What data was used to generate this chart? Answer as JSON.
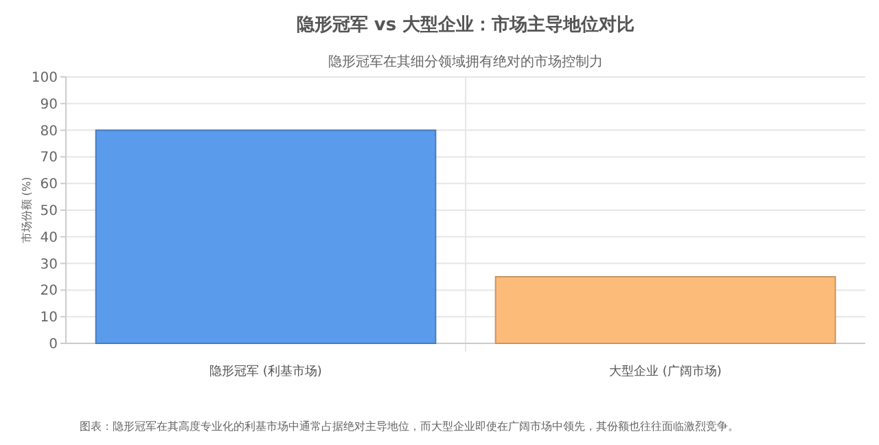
{
  "chart_data": {
    "type": "bar",
    "title": "隐形冠军 vs 大型企业：市场主导地位对比",
    "subtitle": "隐形冠军在其细分领域拥有绝对的市场控制力",
    "ylabel": "市场份额 (%)",
    "categories": [
      "隐形冠军 (利基市场)",
      "大型企业 (广阔市场)"
    ],
    "values": [
      80,
      25
    ],
    "colors": [
      "#5b9bec",
      "#fdbb7a"
    ],
    "ylim": [
      0,
      100
    ],
    "yticks": [
      0,
      10,
      20,
      30,
      40,
      50,
      60,
      70,
      80,
      90,
      100
    ],
    "grid": true,
    "annotations": [
      "图表：隐形冠军在其高度专业化的利基市场中通常占据绝对主导地位，而大型企业即使在广阔市场中领先，其份额也往往面临激烈竞争。"
    ]
  }
}
